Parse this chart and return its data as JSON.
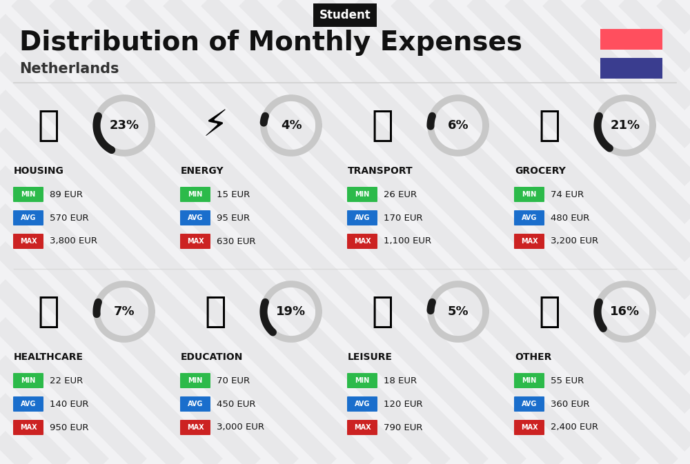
{
  "title": "Distribution of Monthly Expenses",
  "subtitle": "Netherlands",
  "header_tag": "Student",
  "bg_color": "#f2f2f4",
  "flag_red": "#ff4f5e",
  "flag_blue": "#3a3d8f",
  "categories": [
    {
      "name": "HOUSING",
      "pct": 23,
      "min": "89 EUR",
      "avg": "570 EUR",
      "max": "3,800 EUR",
      "emoji": "🏢",
      "row": 0,
      "col": 0
    },
    {
      "name": "ENERGY",
      "pct": 4,
      "min": "15 EUR",
      "avg": "95 EUR",
      "max": "630 EUR",
      "emoji": "⚡",
      "row": 0,
      "col": 1
    },
    {
      "name": "TRANSPORT",
      "pct": 6,
      "min": "26 EUR",
      "avg": "170 EUR",
      "max": "1,100 EUR",
      "emoji": "🚌",
      "row": 0,
      "col": 2
    },
    {
      "name": "GROCERY",
      "pct": 21,
      "min": "74 EUR",
      "avg": "480 EUR",
      "max": "3,200 EUR",
      "emoji": "🛒",
      "row": 0,
      "col": 3
    },
    {
      "name": "HEALTHCARE",
      "pct": 7,
      "min": "22 EUR",
      "avg": "140 EUR",
      "max": "950 EUR",
      "emoji": "🩺",
      "row": 1,
      "col": 0
    },
    {
      "name": "EDUCATION",
      "pct": 19,
      "min": "70 EUR",
      "avg": "450 EUR",
      "max": "3,000 EUR",
      "emoji": "🎓",
      "row": 1,
      "col": 1
    },
    {
      "name": "LEISURE",
      "pct": 5,
      "min": "18 EUR",
      "avg": "120 EUR",
      "max": "790 EUR",
      "emoji": "🛍",
      "row": 1,
      "col": 2
    },
    {
      "name": "OTHER",
      "pct": 16,
      "min": "55 EUR",
      "avg": "360 EUR",
      "max": "2,400 EUR",
      "emoji": "👜",
      "row": 1,
      "col": 3
    }
  ],
  "color_min": "#2cba4a",
  "color_avg": "#1a6ecc",
  "color_max": "#cc2222",
  "donut_active": "#1a1a1a",
  "donut_bg": "#c8c8c8",
  "stripe_color": "#e8e8ea",
  "separator_color": "#d0d0d0"
}
